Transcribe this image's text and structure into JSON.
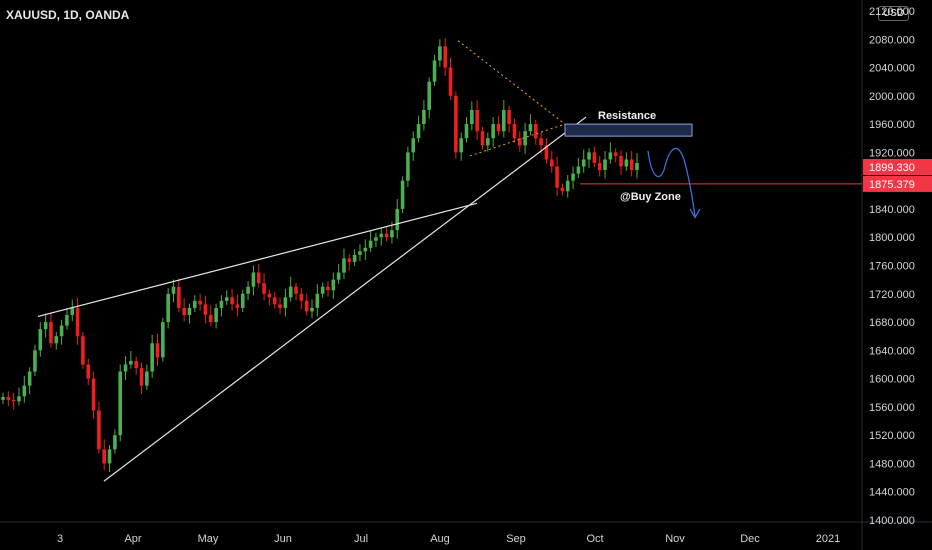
{
  "header": {
    "symbol": "XAUUSD, 1D, OANDA",
    "currency": "USD"
  },
  "colors": {
    "up": "#26a69a",
    "up_body": "#4caf50",
    "down": "#ef1f1f",
    "price_line": "#f23645",
    "resistance_fill": "#1e2a4a",
    "resistance_stroke": "#8ea2d6",
    "arrow": "#3f6fd4"
  },
  "chart_data": {
    "type": "candlestick",
    "instrument": "XAUUSD",
    "timeframe": "1D",
    "source": "OANDA",
    "ylim": [
      1390,
      2130
    ],
    "yticks": [
      1400,
      1440,
      1480,
      1520,
      1560,
      1600,
      1640,
      1680,
      1720,
      1760,
      1800,
      1840,
      1880,
      1920,
      1960,
      2000,
      2040,
      2080,
      2120
    ],
    "ytick_labels": [
      "1400.000",
      "1440.000",
      "1480.000",
      "1520.000",
      "1560.000",
      "1600.000",
      "1640.000",
      "1680.000",
      "1720.000",
      "1760.000",
      "1800.000",
      "1840.000",
      "1880.000",
      "1920.000",
      "1960.000",
      "2000.000",
      "2040.000",
      "2080.000",
      "2120.000"
    ],
    "xtick_labels": [
      "3",
      "Apr",
      "May",
      "Jun",
      "Jul",
      "Aug",
      "Sep",
      "Oct",
      "Nov",
      "Dec",
      "2021"
    ],
    "price_labels": [
      {
        "value": 1899.33,
        "label": "1899.330"
      },
      {
        "value": 1875.379,
        "label": "1875.379"
      }
    ],
    "closes": [
      1574,
      1570,
      1568,
      1575,
      1590,
      1610,
      1640,
      1670,
      1680,
      1650,
      1660,
      1675,
      1690,
      1700,
      1660,
      1620,
      1600,
      1555,
      1500,
      1480,
      1500,
      1520,
      1610,
      1620,
      1625,
      1615,
      1590,
      1610,
      1650,
      1630,
      1680,
      1720,
      1730,
      1700,
      1690,
      1700,
      1710,
      1705,
      1690,
      1680,
      1700,
      1710,
      1715,
      1705,
      1700,
      1720,
      1730,
      1750,
      1735,
      1720,
      1715,
      1705,
      1700,
      1715,
      1730,
      1720,
      1710,
      1695,
      1700,
      1720,
      1730,
      1725,
      1740,
      1750,
      1770,
      1765,
      1775,
      1780,
      1785,
      1795,
      1800,
      1805,
      1800,
      1810,
      1840,
      1880,
      1920,
      1940,
      1960,
      1980,
      2020,
      2050,
      2070,
      2040,
      2000,
      1920,
      1940,
      1960,
      1980,
      1950,
      1930,
      1940,
      1960,
      1950,
      1980,
      1960,
      1940,
      1930,
      1950,
      1960,
      1940,
      1930,
      1910,
      1900,
      1870,
      1865,
      1880,
      1890,
      1900,
      1910,
      1920,
      1905,
      1895,
      1910,
      1920,
      1915,
      1900,
      1910,
      1895,
      1905
    ]
  },
  "annotations": {
    "resistance": "Resistance",
    "buy_zone": "@Buy Zone"
  }
}
